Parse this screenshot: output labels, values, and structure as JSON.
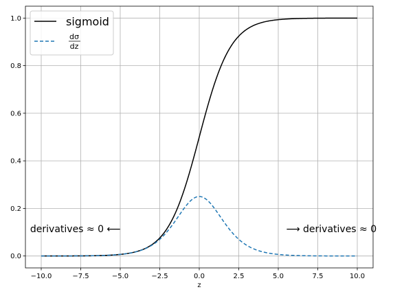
{
  "chart_data": {
    "type": "line",
    "xlabel": "z",
    "ylabel": "",
    "xlim": [
      -11,
      11
    ],
    "ylim": [
      -0.05,
      1.05
    ],
    "xticks": [
      -10.0,
      -7.5,
      -5.0,
      -2.5,
      0.0,
      2.5,
      5.0,
      7.5,
      10.0
    ],
    "xtick_labels": [
      "−10.0",
      "−7.5",
      "−5.0",
      "−2.5",
      "0.0",
      "2.5",
      "5.0",
      "7.5",
      "10.0"
    ],
    "yticks": [
      0.0,
      0.2,
      0.4,
      0.6,
      0.8,
      1.0
    ],
    "ytick_labels": [
      "0.0",
      "0.2",
      "0.4",
      "0.6",
      "0.8",
      "1.0"
    ],
    "grid": true,
    "legend_position": "top-left",
    "series": [
      {
        "name": "sigmoid",
        "color": "#000000",
        "style": "solid",
        "x": [
          -10,
          -9,
          -8,
          -7,
          -6,
          -5,
          -4,
          -3,
          -2.5,
          -2,
          -1.5,
          -1,
          -0.5,
          0,
          0.5,
          1,
          1.5,
          2,
          2.5,
          3,
          4,
          5,
          6,
          7,
          8,
          9,
          10
        ],
        "y": [
          4.54e-05,
          0.0001234,
          0.0003354,
          0.0009111,
          0.0024726,
          0.0066929,
          0.0179862,
          0.0474259,
          0.0758582,
          0.1192029,
          0.1824255,
          0.2689414,
          0.3775407,
          0.5,
          0.6224593,
          0.7310586,
          0.8175745,
          0.8807971,
          0.9241418,
          0.9525741,
          0.9820138,
          0.9933071,
          0.9975274,
          0.9990889,
          0.9996646,
          0.9998766,
          0.9999546
        ]
      },
      {
        "name_numerator": "dσ",
        "name_denominator": "dz",
        "color": "#1f77b4",
        "style": "dashed",
        "x": [
          -10,
          -9,
          -8,
          -7,
          -6,
          -5,
          -4,
          -3,
          -2.5,
          -2,
          -1.5,
          -1,
          -0.5,
          0,
          0.5,
          1,
          1.5,
          2,
          2.5,
          3,
          4,
          5,
          6,
          7,
          8,
          9,
          10
        ],
        "y": [
          4.54e-05,
          0.0001234,
          0.0003353,
          0.0009103,
          0.0024665,
          0.0066481,
          0.0176627,
          0.0451767,
          0.0701037,
          0.1049936,
          0.1491465,
          0.1966119,
          0.2350037,
          0.25,
          0.2350037,
          0.1966119,
          0.1491465,
          0.1049936,
          0.0701037,
          0.0451767,
          0.0176627,
          0.0066481,
          0.0024665,
          0.0009103,
          0.0003353,
          0.0001234,
          4.54e-05
        ]
      }
    ],
    "annotations": [
      {
        "id": "left",
        "text": "derivatives ≈ 0 ⟵",
        "x": -10.7,
        "y": 0.115
      },
      {
        "id": "right",
        "text": "⟶ derivatives ≈ 0",
        "x": 5.5,
        "y": 0.115
      }
    ]
  }
}
